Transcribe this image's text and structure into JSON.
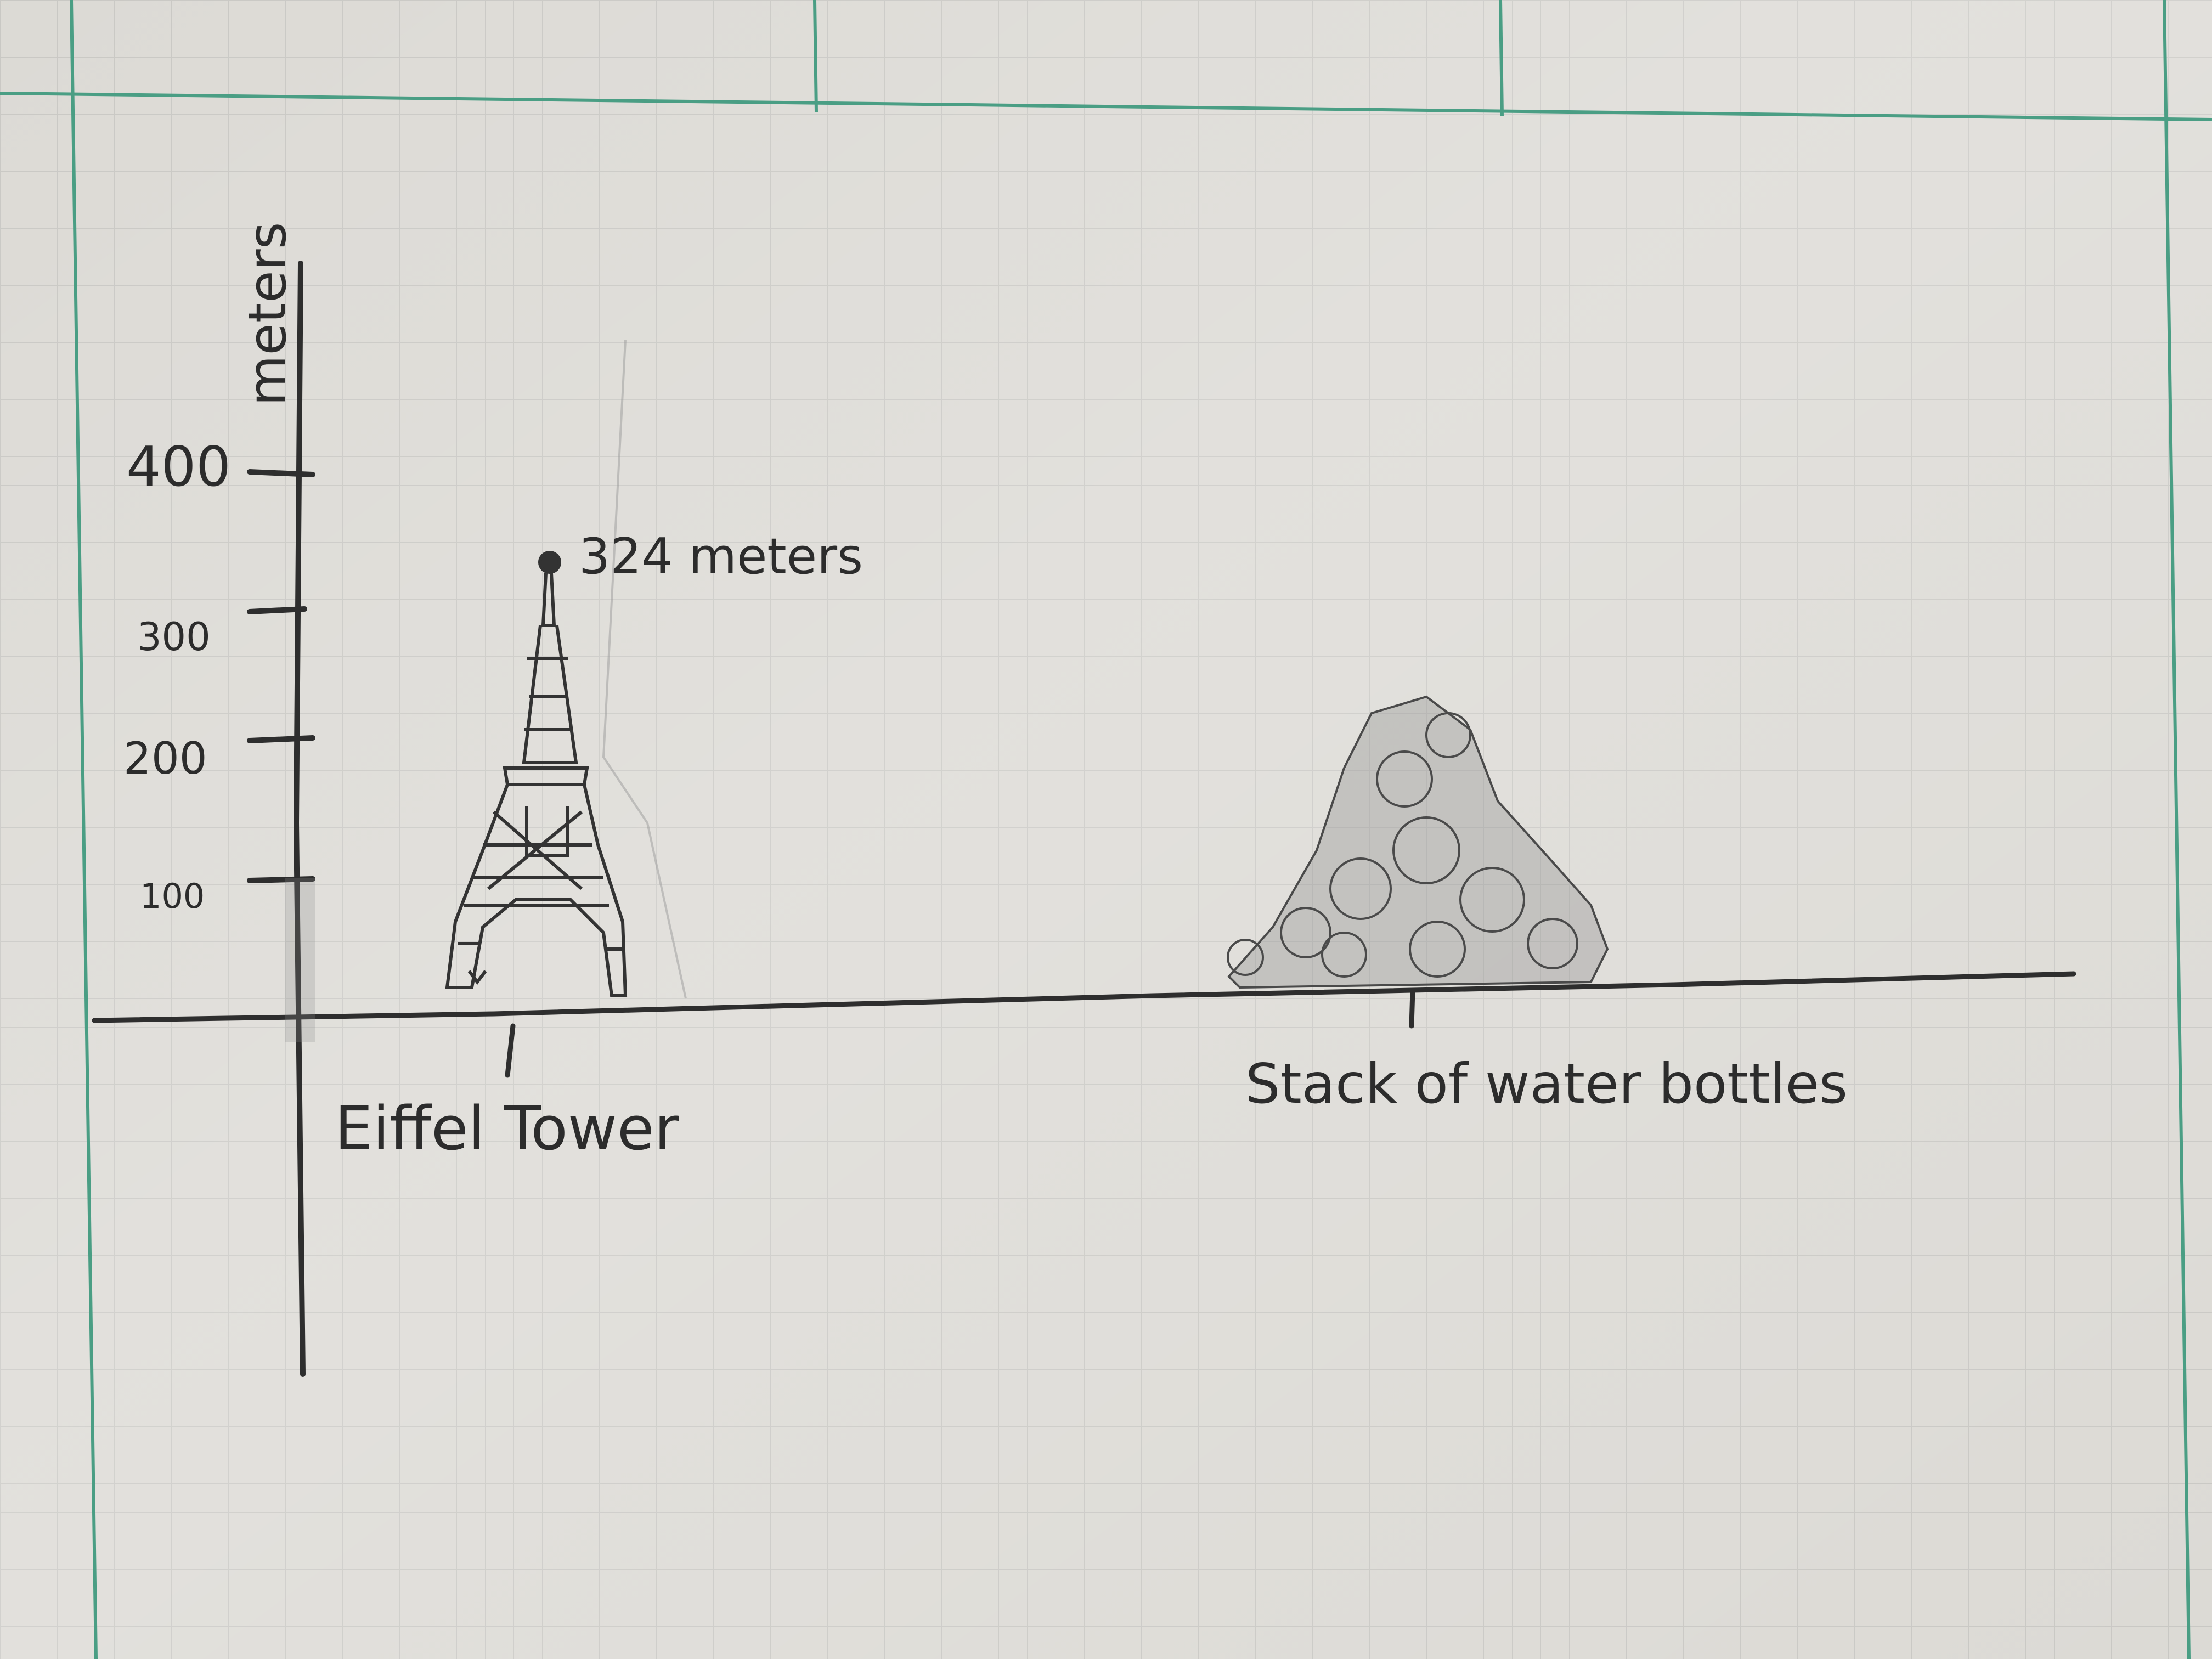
{
  "diagram": {
    "axis_title": "meters",
    "tick_labels": [
      "400",
      "300",
      "200",
      "100"
    ],
    "annotation": "324 meters",
    "objects": [
      {
        "label": "Eiffel Tower"
      },
      {
        "label": "Stack of water bottles"
      }
    ],
    "colors": {
      "paper": "#dcdad5",
      "grid": "#c4c4c2",
      "margin_lines": "#4a9e84",
      "pencil": "#2c2c2c"
    }
  }
}
